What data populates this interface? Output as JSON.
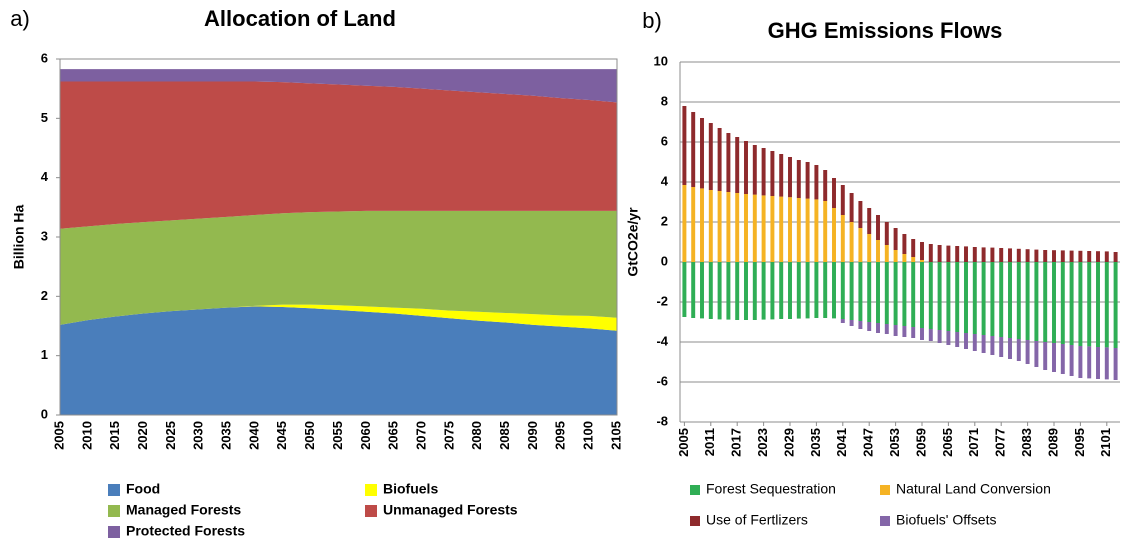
{
  "chart_data": [
    {
      "type": "area",
      "panel_label": "a)",
      "title": "Allocation of Land",
      "y_label": "Billion Ha",
      "stacked": true,
      "grid": false,
      "categories": [
        "2005",
        "2010",
        "2015",
        "2020",
        "2025",
        "2030",
        "2035",
        "2040",
        "2045",
        "2050",
        "2055",
        "2060",
        "2065",
        "2070",
        "2075",
        "2080",
        "2085",
        "2090",
        "2095",
        "2100",
        "2105"
      ],
      "ylim": [
        0,
        6
      ],
      "yticks": [
        0,
        1,
        2,
        3,
        4,
        5,
        6
      ],
      "series": [
        {
          "name": "Food",
          "color": "#4a7ebb",
          "values": [
            1.52,
            1.6,
            1.66,
            1.71,
            1.75,
            1.78,
            1.81,
            1.83,
            1.82,
            1.8,
            1.77,
            1.74,
            1.71,
            1.67,
            1.63,
            1.59,
            1.56,
            1.52,
            1.49,
            1.46,
            1.42
          ]
        },
        {
          "name": "Biofuels",
          "color": "#ffff00",
          "values": [
            0,
            0,
            0,
            0,
            0,
            0,
            0,
            0.01,
            0.04,
            0.06,
            0.08,
            0.09,
            0.1,
            0.12,
            0.13,
            0.15,
            0.16,
            0.18,
            0.19,
            0.21,
            0.22
          ]
        },
        {
          "name": "Managed Forests",
          "color": "#93b94f",
          "values": [
            1.62,
            1.58,
            1.56,
            1.54,
            1.53,
            1.53,
            1.53,
            1.53,
            1.54,
            1.56,
            1.58,
            1.61,
            1.63,
            1.65,
            1.68,
            1.7,
            1.72,
            1.74,
            1.76,
            1.77,
            1.8
          ]
        },
        {
          "name": "Unmanaged Forests",
          "color": "#be4b48",
          "values": [
            2.48,
            2.44,
            2.4,
            2.37,
            2.34,
            2.31,
            2.28,
            2.25,
            2.21,
            2.17,
            2.14,
            2.11,
            2.09,
            2.06,
            2.03,
            2.0,
            1.97,
            1.94,
            1.9,
            1.87,
            1.83
          ]
        },
        {
          "name": "Protected Forests",
          "color": "#7d60a0",
          "values": [
            0.21,
            0.21,
            0.21,
            0.21,
            0.21,
            0.21,
            0.21,
            0.21,
            0.22,
            0.24,
            0.26,
            0.28,
            0.3,
            0.33,
            0.36,
            0.39,
            0.42,
            0.45,
            0.49,
            0.52,
            0.56
          ]
        }
      ]
    },
    {
      "type": "bar",
      "panel_label": "b)",
      "title": "GHG Emissions Flows",
      "y_label": "GtCO2e/yr",
      "stacked": true,
      "grid": true,
      "x": [
        2005,
        2007,
        2009,
        2011,
        2013,
        2015,
        2017,
        2019,
        2021,
        2023,
        2025,
        2027,
        2029,
        2031,
        2033,
        2035,
        2037,
        2039,
        2041,
        2043,
        2045,
        2047,
        2049,
        2051,
        2053,
        2055,
        2057,
        2059,
        2061,
        2063,
        2065,
        2067,
        2069,
        2071,
        2073,
        2075,
        2077,
        2079,
        2081,
        2083,
        2085,
        2087,
        2089,
        2091,
        2093,
        2095,
        2097,
        2099,
        2101,
        2103
      ],
      "xlim": [
        2004,
        2104
      ],
      "xticks": [
        2005,
        2011,
        2017,
        2023,
        2029,
        2035,
        2041,
        2047,
        2053,
        2059,
        2065,
        2071,
        2077,
        2083,
        2089,
        2095,
        2101
      ],
      "ylim": [
        -8,
        10
      ],
      "yticks": [
        -8,
        -6,
        -4,
        -2,
        0,
        2,
        4,
        6,
        8,
        10
      ],
      "series": [
        {
          "name": "Forest Sequestration",
          "color": "#2fae55",
          "values": [
            -2.75,
            -2.8,
            -2.82,
            -2.85,
            -2.87,
            -2.88,
            -2.9,
            -2.9,
            -2.9,
            -2.88,
            -2.87,
            -2.85,
            -2.85,
            -2.83,
            -2.82,
            -2.8,
            -2.8,
            -2.82,
            -2.85,
            -2.9,
            -2.95,
            -3.0,
            -3.05,
            -3.1,
            -3.15,
            -3.2,
            -3.25,
            -3.3,
            -3.35,
            -3.4,
            -3.45,
            -3.5,
            -3.55,
            -3.6,
            -3.65,
            -3.7,
            -3.75,
            -3.8,
            -3.85,
            -3.9,
            -3.95,
            -4.0,
            -4.05,
            -4.1,
            -4.15,
            -4.2,
            -4.22,
            -4.25,
            -4.27,
            -4.3
          ]
        },
        {
          "name": "Natural Land Conversion",
          "color": "#f5b324",
          "values": [
            3.85,
            3.75,
            3.68,
            3.6,
            3.55,
            3.5,
            3.45,
            3.4,
            3.37,
            3.33,
            3.3,
            3.27,
            3.24,
            3.2,
            3.17,
            3.13,
            3.05,
            2.7,
            2.35,
            2.0,
            1.7,
            1.4,
            1.1,
            0.85,
            0.6,
            0.4,
            0.25,
            0.1,
            0,
            0,
            0,
            0,
            0,
            0,
            0,
            0,
            0,
            0,
            0,
            0,
            0,
            0,
            0,
            0,
            0,
            0,
            0,
            0,
            0,
            0
          ]
        },
        {
          "name": "Use of Fertlizers",
          "color": "#8e2a2c",
          "values": [
            3.95,
            3.75,
            3.52,
            3.35,
            3.15,
            2.95,
            2.8,
            2.65,
            2.48,
            2.37,
            2.25,
            2.13,
            2.01,
            1.9,
            1.83,
            1.72,
            1.55,
            1.5,
            1.5,
            1.45,
            1.35,
            1.3,
            1.25,
            1.15,
            1.1,
            1.0,
            0.9,
            0.9,
            0.9,
            0.85,
            0.82,
            0.8,
            0.78,
            0.75,
            0.73,
            0.72,
            0.7,
            0.68,
            0.66,
            0.64,
            0.62,
            0.6,
            0.59,
            0.58,
            0.57,
            0.56,
            0.55,
            0.54,
            0.53,
            0.5
          ]
        },
        {
          "name": "Biofuels' Offsets",
          "color": "#8466a8",
          "values": [
            0,
            0,
            0,
            0,
            0,
            0,
            0,
            0,
            0,
            0,
            0,
            0,
            0,
            0,
            0,
            0,
            0,
            0,
            -0.2,
            -0.3,
            -0.4,
            -0.45,
            -0.5,
            -0.5,
            -0.55,
            -0.55,
            -0.55,
            -0.6,
            -0.6,
            -0.65,
            -0.7,
            -0.75,
            -0.8,
            -0.85,
            -0.9,
            -0.95,
            -1.0,
            -1.05,
            -1.1,
            -1.2,
            -1.3,
            -1.4,
            -1.45,
            -1.5,
            -1.55,
            -1.6,
            -1.6,
            -1.6,
            -1.6,
            -1.6
          ]
        }
      ]
    }
  ]
}
